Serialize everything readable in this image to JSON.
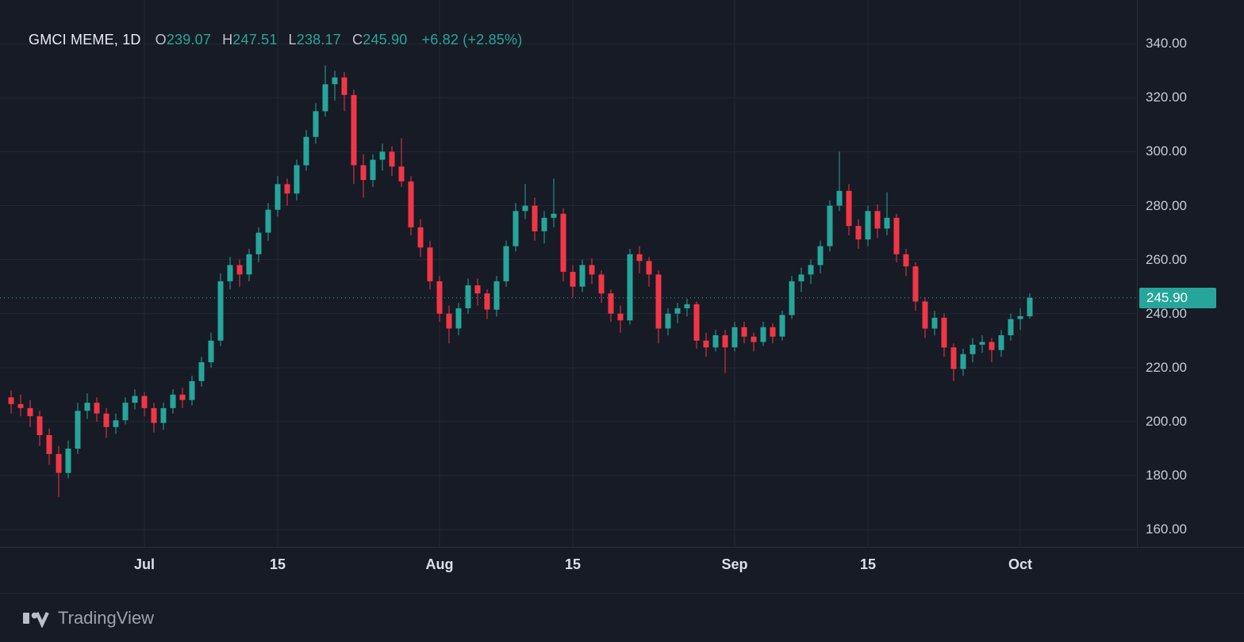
{
  "legend": {
    "symbol": "GMCI MEME, 1D",
    "ohlc": [
      {
        "label": "O",
        "value": "239.07"
      },
      {
        "label": "H",
        "value": "247.51"
      },
      {
        "label": "L",
        "value": "238.17"
      },
      {
        "label": "C",
        "value": "245.90"
      }
    ],
    "change": "+6.82 (+2.85%)"
  },
  "colors": {
    "bg": "#171b26",
    "up": "#26a69a",
    "down": "#f23645",
    "grid": "#222834",
    "axis_text": "#c6cbd6",
    "separator": "#2a2e39"
  },
  "price_axis": {
    "ticks": [
      "340.00",
      "320.00",
      "300.00",
      "280.00",
      "260.00",
      "240.00",
      "220.00",
      "200.00",
      "180.00",
      "160.00"
    ],
    "top_price": 356.2,
    "bottom_price": 153.6,
    "last_price": 245.9,
    "last_price_label": "245.90"
  },
  "time_axis": {
    "ticks": [
      {
        "label": "Jul",
        "date": "07-01"
      },
      {
        "label": "15",
        "date": "07-15"
      },
      {
        "label": "Aug",
        "date": "08-01"
      },
      {
        "label": "15",
        "date": "08-15"
      },
      {
        "label": "Sep",
        "date": "09-01"
      },
      {
        "label": "15",
        "date": "09-15"
      },
      {
        "label": "Oct",
        "date": "10-01"
      }
    ]
  },
  "footer": {
    "brand": "TradingView"
  },
  "chart_data": {
    "type": "candlestick",
    "symbol": "GMCI MEME",
    "interval": "1D",
    "ylim": [
      153.6,
      356.2
    ],
    "last_bar": {
      "open": 239.07,
      "high": 247.51,
      "low": 238.17,
      "close": 245.9,
      "change": "+6.82",
      "change_pct": "+2.85%"
    },
    "candles": [
      [
        "06-17",
        209.0,
        211.5,
        203.0,
        206.5
      ],
      [
        "06-18",
        206.5,
        210.0,
        202.0,
        205.0
      ],
      [
        "06-19",
        205.0,
        208.0,
        198.0,
        202.0
      ],
      [
        "06-20",
        202.0,
        204.0,
        191.0,
        195.0
      ],
      [
        "06-21",
        195.0,
        197.5,
        184.0,
        188.0
      ],
      [
        "06-22",
        188.0,
        191.0,
        172.0,
        181.0
      ],
      [
        "06-23",
        181.0,
        193.0,
        179.0,
        190.0
      ],
      [
        "06-24",
        190.0,
        207.0,
        188.0,
        204.0
      ],
      [
        "06-25",
        204.0,
        210.5,
        201.0,
        207.0
      ],
      [
        "06-26",
        207.0,
        209.0,
        200.0,
        203.0
      ],
      [
        "06-27",
        203.0,
        205.0,
        194.0,
        198.0
      ],
      [
        "06-28",
        198.0,
        203.0,
        195.5,
        200.5
      ],
      [
        "06-29",
        200.5,
        209.0,
        199.0,
        207.0
      ],
      [
        "06-30",
        207.0,
        212.0,
        204.5,
        209.5
      ],
      [
        "07-01",
        209.5,
        211.0,
        202.0,
        205.0
      ],
      [
        "07-02",
        205.0,
        207.0,
        196.0,
        199.5
      ],
      [
        "07-03",
        199.5,
        207.0,
        197.0,
        205.0
      ],
      [
        "07-04",
        205.0,
        212.0,
        203.0,
        210.0
      ],
      [
        "07-05",
        210.0,
        212.5,
        205.0,
        208.0
      ],
      [
        "07-06",
        208.0,
        217.0,
        206.0,
        215.0
      ],
      [
        "07-07",
        215.0,
        224.0,
        213.0,
        222.0
      ],
      [
        "07-08",
        222.0,
        233.0,
        220.0,
        230.0
      ],
      [
        "07-09",
        230.0,
        255.0,
        228.0,
        252.0
      ],
      [
        "07-10",
        252.0,
        261.0,
        249.0,
        258.0
      ],
      [
        "07-11",
        258.0,
        260.0,
        250.0,
        254.5
      ],
      [
        "07-12",
        254.5,
        264.0,
        252.0,
        262.0
      ],
      [
        "07-13",
        262.0,
        272.0,
        259.0,
        270.0
      ],
      [
        "07-14",
        270.0,
        281.0,
        267.0,
        278.5
      ],
      [
        "07-15",
        278.5,
        291.0,
        276.0,
        288.0
      ],
      [
        "07-16",
        288.0,
        290.0,
        280.0,
        284.5
      ],
      [
        "07-17",
        284.5,
        297.0,
        282.0,
        295.0
      ],
      [
        "07-18",
        295.0,
        308.0,
        293.0,
        305.5
      ],
      [
        "07-19",
        305.5,
        318.0,
        303.0,
        315.0
      ],
      [
        "07-20",
        315.0,
        332.0,
        313.0,
        325.0
      ],
      [
        "07-21",
        325.0,
        330.0,
        319.0,
        327.5
      ],
      [
        "07-22",
        327.5,
        329.5,
        315.0,
        321.0
      ],
      [
        "07-23",
        321.0,
        323.0,
        288.0,
        295.0
      ],
      [
        "07-24",
        295.0,
        299.0,
        283.0,
        289.5
      ],
      [
        "07-25",
        289.5,
        299.0,
        287.0,
        297.0
      ],
      [
        "07-26",
        297.0,
        303.0,
        293.0,
        300.0
      ],
      [
        "07-27",
        300.0,
        302.0,
        291.0,
        294.5
      ],
      [
        "07-28",
        294.5,
        305.0,
        287.0,
        289.0
      ],
      [
        "07-29",
        289.0,
        291.0,
        269.0,
        272.0
      ],
      [
        "07-30",
        272.0,
        275.0,
        261.0,
        264.5
      ],
      [
        "07-31",
        264.5,
        267.0,
        249.0,
        252.0
      ],
      [
        "08-01",
        252.0,
        254.0,
        237.0,
        240.0
      ],
      [
        "08-02",
        240.0,
        243.0,
        229.0,
        234.5
      ],
      [
        "08-03",
        234.5,
        244.0,
        232.0,
        242.0
      ],
      [
        "08-04",
        242.0,
        253.0,
        240.0,
        250.5
      ],
      [
        "08-05",
        250.5,
        253.0,
        243.0,
        247.5
      ],
      [
        "08-06",
        247.5,
        249.0,
        238.0,
        241.5
      ],
      [
        "08-07",
        241.5,
        254.0,
        239.0,
        252.0
      ],
      [
        "08-08",
        252.0,
        267.0,
        250.0,
        265.0
      ],
      [
        "08-09",
        265.0,
        281.0,
        263.0,
        278.0
      ],
      [
        "08-10",
        278.0,
        288.0,
        275.0,
        280.0
      ],
      [
        "08-11",
        280.0,
        283.0,
        267.0,
        270.5
      ],
      [
        "08-12",
        270.5,
        278.0,
        266.0,
        275.5
      ],
      [
        "08-13",
        275.5,
        290.0,
        272.0,
        277.0
      ],
      [
        "08-14",
        277.0,
        279.0,
        252.0,
        255.5
      ],
      [
        "08-15",
        255.5,
        258.0,
        246.0,
        250.0
      ],
      [
        "08-16",
        250.0,
        260.0,
        248.0,
        258.0
      ],
      [
        "08-17",
        258.0,
        260.5,
        251.0,
        254.5
      ],
      [
        "08-18",
        254.5,
        256.0,
        244.0,
        247.5
      ],
      [
        "08-19",
        247.5,
        249.0,
        237.0,
        240.0
      ],
      [
        "08-20",
        240.0,
        243.0,
        233.0,
        237.5
      ],
      [
        "08-21",
        237.5,
        264.0,
        236.0,
        262.0
      ],
      [
        "08-22",
        262.0,
        265.0,
        255.0,
        259.5
      ],
      [
        "08-23",
        259.5,
        261.0,
        250.0,
        254.5
      ],
      [
        "08-24",
        254.5,
        256.0,
        229.0,
        234.5
      ],
      [
        "08-25",
        234.5,
        242.0,
        232.0,
        240.0
      ],
      [
        "08-26",
        240.0,
        244.0,
        236.5,
        242.0
      ],
      [
        "08-27",
        242.0,
        245.5,
        239.0,
        243.5
      ],
      [
        "08-28",
        243.5,
        244.5,
        227.0,
        230.0
      ],
      [
        "08-29",
        230.0,
        233.0,
        224.0,
        227.5
      ],
      [
        "08-30",
        227.5,
        234.0,
        226.0,
        232.0
      ],
      [
        "08-31",
        232.0,
        234.0,
        218.0,
        227.5
      ],
      [
        "09-01",
        227.5,
        237.0,
        226.0,
        235.0
      ],
      [
        "09-02",
        235.0,
        237.0,
        229.0,
        231.5
      ],
      [
        "09-03",
        231.5,
        233.0,
        226.0,
        229.5
      ],
      [
        "09-04",
        229.5,
        237.0,
        228.0,
        235.0
      ],
      [
        "09-05",
        235.0,
        236.5,
        229.0,
        231.5
      ],
      [
        "09-06",
        231.5,
        241.0,
        230.0,
        239.5
      ],
      [
        "09-07",
        239.5,
        254.0,
        238.0,
        252.0
      ],
      [
        "09-08",
        252.0,
        257.0,
        248.0,
        254.5
      ],
      [
        "09-09",
        254.5,
        260.0,
        251.0,
        258.0
      ],
      [
        "09-10",
        258.0,
        267.0,
        255.0,
        265.0
      ],
      [
        "09-11",
        265.0,
        282.0,
        263.0,
        280.0
      ],
      [
        "09-12",
        280.0,
        300.0,
        278.0,
        285.5
      ],
      [
        "09-13",
        285.5,
        288.0,
        269.0,
        272.5
      ],
      [
        "09-14",
        272.5,
        275.0,
        264.0,
        267.5
      ],
      [
        "09-15",
        267.5,
        280.0,
        265.0,
        278.0
      ],
      [
        "09-16",
        278.0,
        280.5,
        268.0,
        271.5
      ],
      [
        "09-17",
        271.5,
        285.0,
        269.0,
        275.5
      ],
      [
        "09-18",
        275.5,
        277.0,
        259.0,
        262.0
      ],
      [
        "09-19",
        262.0,
        264.0,
        254.0,
        257.5
      ],
      [
        "09-20",
        257.5,
        259.0,
        241.0,
        244.5
      ],
      [
        "09-21",
        244.5,
        246.0,
        231.0,
        234.5
      ],
      [
        "09-22",
        234.5,
        241.0,
        232.0,
        238.5
      ],
      [
        "09-23",
        238.5,
        240.0,
        224.0,
        227.5
      ],
      [
        "09-24",
        227.5,
        229.0,
        215.0,
        219.5
      ],
      [
        "09-25",
        219.5,
        227.0,
        217.0,
        225.0
      ],
      [
        "09-26",
        225.0,
        231.0,
        222.0,
        228.5
      ],
      [
        "09-27",
        228.5,
        232.0,
        225.5,
        229.5
      ],
      [
        "09-28",
        229.5,
        231.0,
        222.0,
        226.5
      ],
      [
        "09-29",
        226.5,
        234.0,
        224.0,
        232.0
      ],
      [
        "09-30",
        232.0,
        240.0,
        230.0,
        238.0
      ],
      [
        "10-01",
        238.0,
        242.0,
        234.0,
        239.07
      ],
      [
        "10-02",
        239.07,
        247.51,
        238.17,
        245.9
      ]
    ]
  }
}
